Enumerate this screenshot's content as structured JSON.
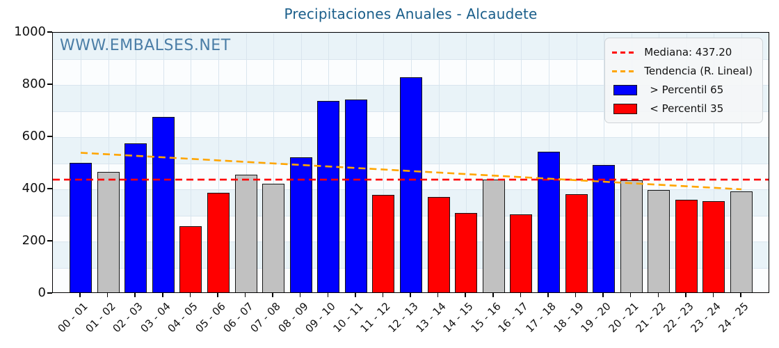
{
  "watermark": "WWW.EMBALSES.NET",
  "colors": {
    "title": "#1a5e8a",
    "watermark": "#4a7da6",
    "bar_p65": "#0000ff",
    "bar_p35": "#ff0000",
    "bar_mid": "#c1c1c1",
    "median_line": "#ff0000",
    "trend_line": "#ffa500",
    "band_blue": "#e9f3f8",
    "band_white": "#fbfdfe",
    "grid": "#d9e5ee"
  },
  "chart_data": {
    "type": "bar",
    "title": "Precipitaciones Anuales - Alcaudete",
    "xlabel": "",
    "ylabel": "",
    "ylim": [
      0,
      1000
    ],
    "yticks": [
      0,
      200,
      400,
      600,
      800,
      1000
    ],
    "grid": true,
    "legend_position": "top-right",
    "categories": [
      "00 - 01",
      "01 - 02",
      "02 - 03",
      "03 - 04",
      "04 - 05",
      "05 - 06",
      "06 - 07",
      "07 - 08",
      "08 - 09",
      "09 - 10",
      "10 - 11",
      "11 - 12",
      "12 - 13",
      "13 - 14",
      "14 - 15",
      "15 - 16",
      "16 - 17",
      "17 - 18",
      "18 - 19",
      "19 - 20",
      "20 - 21",
      "21 - 22",
      "22 - 23",
      "23 - 24",
      "24 - 25"
    ],
    "values": [
      502,
      468,
      576,
      678,
      258,
      388,
      456,
      421,
      523,
      738,
      745,
      379,
      830,
      371,
      309,
      437,
      305,
      543,
      381,
      493,
      434,
      397,
      360,
      355,
      392
    ],
    "bar_classes": [
      "p65",
      "mid",
      "p65",
      "p65",
      "p35",
      "p35",
      "mid",
      "mid",
      "p65",
      "p65",
      "p65",
      "p35",
      "p65",
      "p35",
      "p35",
      "mid",
      "p35",
      "p65",
      "p35",
      "p65",
      "mid",
      "mid",
      "p35",
      "p35",
      "mid"
    ],
    "median": 437.2,
    "trend": {
      "start_value": 540,
      "end_value": 400
    },
    "legend": [
      {
        "swatch": "line-red",
        "label": "Mediana: 437.20"
      },
      {
        "swatch": "line-orange",
        "label": "Tendencia (R. Lineal)"
      },
      {
        "swatch": "patch-blue",
        "label": "> Percentil 65"
      },
      {
        "swatch": "patch-red",
        "label": "< Percentil 35"
      }
    ]
  }
}
